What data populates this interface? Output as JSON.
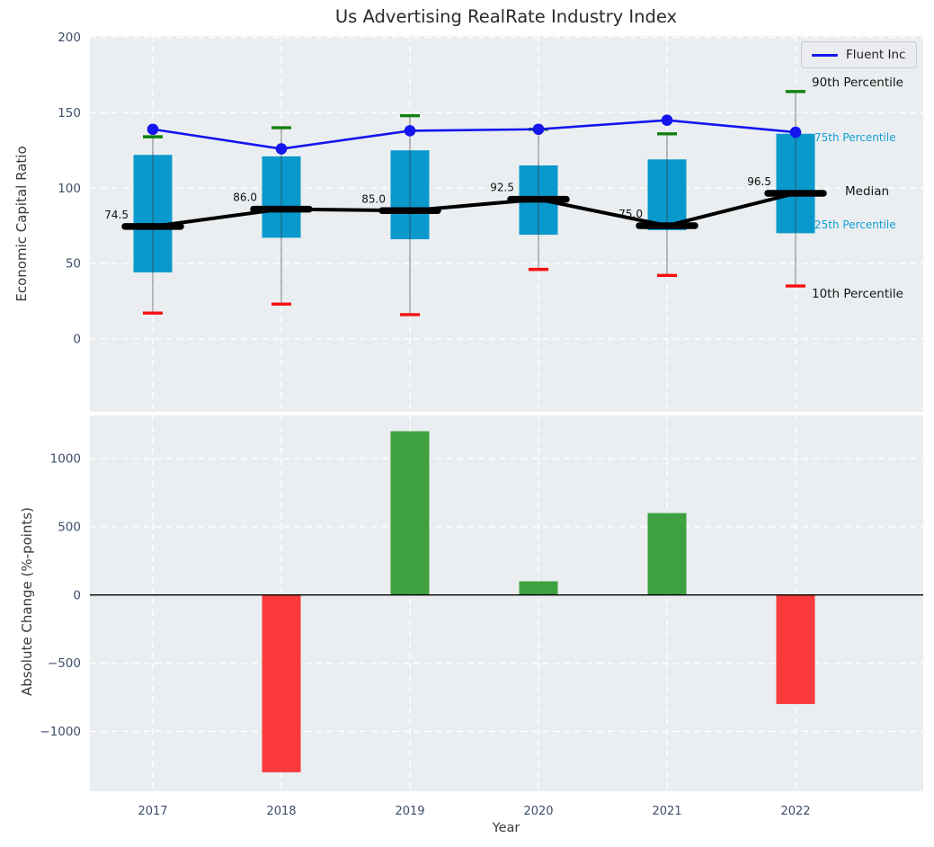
{
  "title": "Us Advertising RealRate Industry Index",
  "legend": {
    "label": "Fluent Inc",
    "line_color": "#1515ee"
  },
  "chart_data": [
    {
      "type": "box-percentile",
      "title": "Us Advertising RealRate Industry Index",
      "ylabel": "Economic Capital Ratio",
      "categories": [
        "2017",
        "2018",
        "2019",
        "2020",
        "2021",
        "2022"
      ],
      "series": [
        {
          "name": "90th Percentile",
          "values": [
            134,
            140,
            148,
            139,
            136,
            164
          ]
        },
        {
          "name": "75th Percentile",
          "values": [
            122,
            121,
            125,
            115,
            119,
            136
          ]
        },
        {
          "name": "Median",
          "values": [
            74.5,
            86.0,
            85.0,
            92.5,
            75.0,
            96.5
          ]
        },
        {
          "name": "25th Percentile",
          "values": [
            44,
            67,
            66,
            69,
            72,
            70
          ]
        },
        {
          "name": "10th Percentile",
          "values": [
            17,
            23,
            16,
            46,
            42,
            35
          ]
        },
        {
          "name": "Fluent Inc",
          "values": [
            139,
            126,
            138,
            139,
            145,
            137
          ]
        }
      ],
      "median_labels": [
        "74.5",
        "86.0",
        "85.0",
        "92.5",
        "75.0",
        "96.5"
      ],
      "yticks": [
        0,
        50,
        100,
        150,
        200
      ],
      "ylim": [
        -48.5,
        200.9
      ],
      "grid": true,
      "legend_position": "upper-right",
      "annotations": [
        {
          "label": "90th Percentile",
          "color": "#141414"
        },
        {
          "label": "75th Percentile",
          "color": "#149fd6"
        },
        {
          "label": "Median",
          "color": "#141414"
        },
        {
          "label": "25th Percentile",
          "color": "#149fd6"
        },
        {
          "label": "10th Percentile",
          "color": "#141414"
        }
      ],
      "colors": {
        "box_fill": "#0a99cc",
        "median_line": "#000000",
        "fluent_line": "#1515ee",
        "p90_cap": "#118011",
        "p10_cap": "#f50f0f",
        "whisker": "#3a3a3a",
        "axes_background": "#eaeef0",
        "tick_label": "#3d4e6a"
      }
    },
    {
      "type": "bar",
      "xlabel": "Year",
      "ylabel": "Absolute Change (%-points)",
      "categories": [
        "2017",
        "2018",
        "2019",
        "2020",
        "2021",
        "2022"
      ],
      "values": [
        0,
        -1300,
        1200,
        100,
        600,
        -800
      ],
      "yticks": [
        -1000,
        -500,
        0,
        500,
        1000
      ],
      "ylim": [
        -1439,
        1316
      ],
      "grid": true,
      "colors": {
        "positive_bar": "#3fa03f",
        "negative_bar": "#fb3b3b",
        "zero_line": "#000000",
        "axes_background": "#eaeef0",
        "tick_label": "#3d4e6a"
      }
    }
  ]
}
